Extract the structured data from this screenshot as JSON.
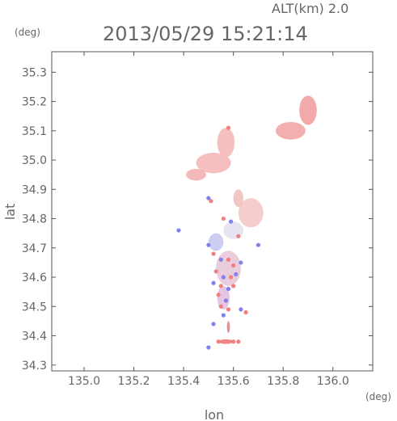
{
  "header": {
    "alt_label": "ALT(km) 2.0",
    "timestamp": "2013/05/29 15:21:14",
    "y_unit": "(deg)",
    "x_unit": "(deg)"
  },
  "colors": {
    "frame": "#555555",
    "text": "#666666",
    "positive": "#f08080",
    "negative": "#8080f0"
  },
  "chart_data": {
    "type": "scatter",
    "title": "2013/05/29 15:21:14",
    "subtitle": "ALT(km) 2.0",
    "xlabel": "lon",
    "ylabel": "lat",
    "xlim": [
      134.87,
      136.16
    ],
    "ylim": [
      34.28,
      35.37
    ],
    "x_ticks": [
      "135.0",
      "135.2",
      "135.4",
      "135.6",
      "135.8",
      "136.0"
    ],
    "y_ticks": [
      "34.3",
      "34.4",
      "34.5",
      "34.6",
      "34.7",
      "34.8",
      "34.9",
      "35.0",
      "35.1",
      "35.2",
      "35.3"
    ],
    "grid": false,
    "blobs": [
      {
        "lon": 135.52,
        "lat": 34.99,
        "rx": 0.07,
        "ry": 0.035,
        "color": "#f4b8b8"
      },
      {
        "lon": 135.57,
        "lat": 35.06,
        "rx": 0.035,
        "ry": 0.05,
        "color": "#f4b8b8"
      },
      {
        "lon": 135.45,
        "lat": 34.95,
        "rx": 0.04,
        "ry": 0.02,
        "color": "#f2b0b0"
      },
      {
        "lon": 135.83,
        "lat": 35.1,
        "rx": 0.06,
        "ry": 0.03,
        "color": "#f2a6a6"
      },
      {
        "lon": 135.9,
        "lat": 35.17,
        "rx": 0.035,
        "ry": 0.05,
        "color": "#f0a0a0"
      },
      {
        "lon": 135.67,
        "lat": 34.82,
        "rx": 0.05,
        "ry": 0.05,
        "color": "#f4c8c8"
      },
      {
        "lon": 135.62,
        "lat": 34.87,
        "rx": 0.02,
        "ry": 0.03,
        "color": "#f2c0c0"
      },
      {
        "lon": 135.6,
        "lat": 34.76,
        "rx": 0.04,
        "ry": 0.03,
        "color": "#e4e0f0"
      },
      {
        "lon": 135.53,
        "lat": 34.72,
        "rx": 0.03,
        "ry": 0.03,
        "color": "#c8c8f0"
      },
      {
        "lon": 135.58,
        "lat": 34.63,
        "rx": 0.05,
        "ry": 0.06,
        "color": "#e8c8d8"
      },
      {
        "lon": 135.56,
        "lat": 34.53,
        "rx": 0.025,
        "ry": 0.04,
        "color": "#e0c0e0"
      },
      {
        "lon": 135.57,
        "lat": 34.38,
        "rx": 0.03,
        "ry": 0.008,
        "color": "#f07878"
      },
      {
        "lon": 135.58,
        "lat": 34.43,
        "rx": 0.006,
        "ry": 0.02,
        "color": "#f08080"
      }
    ],
    "points": [
      {
        "lon": 135.58,
        "lat": 35.11,
        "v": 1
      },
      {
        "lon": 135.5,
        "lat": 34.87,
        "v": -1
      },
      {
        "lon": 135.51,
        "lat": 34.86,
        "v": 1
      },
      {
        "lon": 135.56,
        "lat": 34.8,
        "v": 1
      },
      {
        "lon": 135.59,
        "lat": 34.79,
        "v": -1
      },
      {
        "lon": 135.62,
        "lat": 34.74,
        "v": 1
      },
      {
        "lon": 135.5,
        "lat": 34.71,
        "v": -1
      },
      {
        "lon": 135.52,
        "lat": 34.68,
        "v": 1
      },
      {
        "lon": 135.55,
        "lat": 34.66,
        "v": -1
      },
      {
        "lon": 135.58,
        "lat": 34.66,
        "v": 1
      },
      {
        "lon": 135.6,
        "lat": 34.64,
        "v": 1
      },
      {
        "lon": 135.63,
        "lat": 34.65,
        "v": -1
      },
      {
        "lon": 135.53,
        "lat": 34.62,
        "v": 1
      },
      {
        "lon": 135.56,
        "lat": 34.6,
        "v": -1
      },
      {
        "lon": 135.59,
        "lat": 34.6,
        "v": 1
      },
      {
        "lon": 135.61,
        "lat": 34.61,
        "v": -1
      },
      {
        "lon": 135.52,
        "lat": 34.58,
        "v": -1
      },
      {
        "lon": 135.55,
        "lat": 34.57,
        "v": 1
      },
      {
        "lon": 135.58,
        "lat": 34.56,
        "v": -1
      },
      {
        "lon": 135.6,
        "lat": 34.57,
        "v": 1
      },
      {
        "lon": 135.54,
        "lat": 34.54,
        "v": 1
      },
      {
        "lon": 135.57,
        "lat": 34.52,
        "v": -1
      },
      {
        "lon": 135.55,
        "lat": 34.5,
        "v": 1
      },
      {
        "lon": 135.58,
        "lat": 34.49,
        "v": 1
      },
      {
        "lon": 135.63,
        "lat": 34.49,
        "v": -1
      },
      {
        "lon": 135.65,
        "lat": 34.48,
        "v": 1
      },
      {
        "lon": 135.56,
        "lat": 34.47,
        "v": -1
      },
      {
        "lon": 135.52,
        "lat": 34.44,
        "v": -1
      },
      {
        "lon": 135.5,
        "lat": 34.36,
        "v": -1
      },
      {
        "lon": 135.54,
        "lat": 34.38,
        "v": 1
      },
      {
        "lon": 135.6,
        "lat": 34.38,
        "v": 1
      },
      {
        "lon": 135.62,
        "lat": 34.38,
        "v": 1
      },
      {
        "lon": 135.38,
        "lat": 34.76,
        "v": -1
      },
      {
        "lon": 135.7,
        "lat": 34.71,
        "v": -1
      }
    ]
  }
}
